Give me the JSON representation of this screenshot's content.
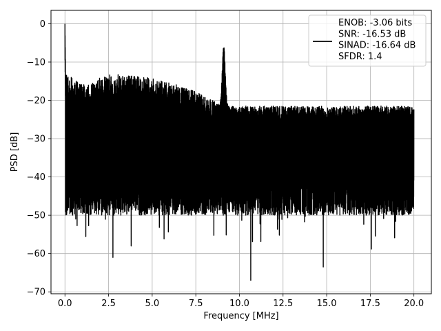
{
  "chart_data": {
    "type": "line",
    "title": "",
    "xlabel": "Frequency [MHz]",
    "ylabel": "PSD [dB]",
    "xlim": [
      -0.8,
      21.0
    ],
    "ylim": [
      -70.5,
      3.5
    ],
    "xticks": [
      0.0,
      2.5,
      5.0,
      7.5,
      10.0,
      12.5,
      15.0,
      17.5,
      20.0
    ],
    "xtick_labels": [
      "0.0",
      "2.5",
      "5.0",
      "7.5",
      "10.0",
      "12.5",
      "15.0",
      "17.5",
      "20.0"
    ],
    "yticks": [
      0,
      -10,
      -20,
      -30,
      -40,
      -50,
      -60,
      -70
    ],
    "ytick_labels": [
      "0",
      "−10",
      "−20",
      "−30",
      "−40",
      "−50",
      "−60",
      "−70"
    ],
    "grid": true,
    "legend_position": "top-right",
    "legend_entries": [
      "ENOB: -3.06 bits",
      "SNR: -16.53 dB",
      "SINAD: -16.64 dB",
      "SFDR: 1.4"
    ],
    "series": [
      {
        "color": "#000000",
        "x_range": [
          0.0,
          20.0
        ],
        "features": [
          {
            "x": 0.0,
            "y": 0.0,
            "description": "DC peak"
          },
          {
            "x": 9.1,
            "y": -5.5,
            "description": "spur peak"
          },
          {
            "x": 2.75,
            "y": -61.0
          },
          {
            "x": 10.65,
            "y": -67.0
          },
          {
            "x": 14.8,
            "y": -63.5
          }
        ],
        "envelope": {
          "upper_low_band": -13.0,
          "upper_high_band": -21.5,
          "lower_typical": -50.0,
          "center": -33.0
        }
      }
    ]
  }
}
